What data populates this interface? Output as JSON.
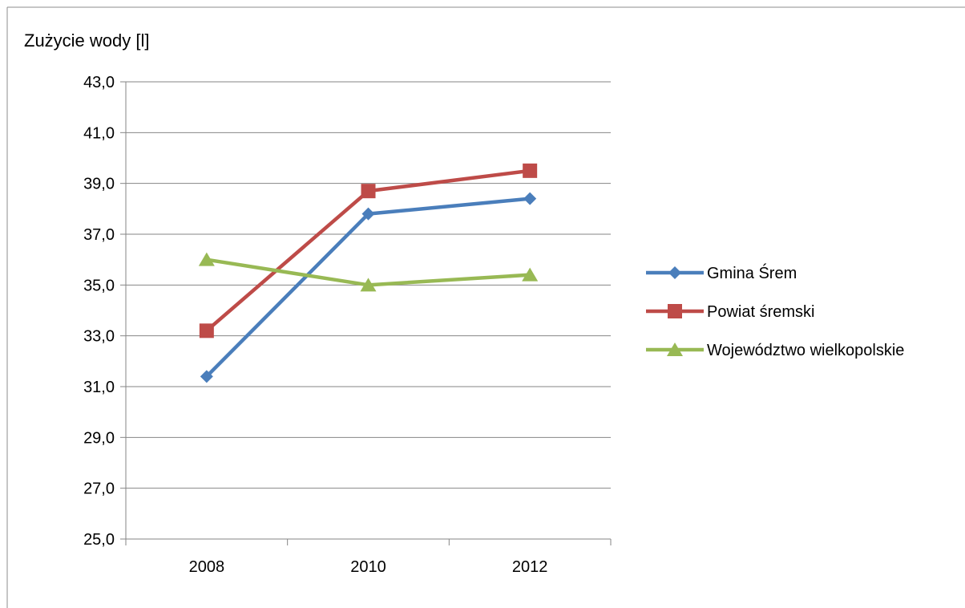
{
  "chart_data": {
    "type": "line",
    "title": "Zużycie wody [l]",
    "categories": [
      "2008",
      "2010",
      "2012"
    ],
    "ylim": [
      25,
      43
    ],
    "yticks": [
      "25,0",
      "27,0",
      "29,0",
      "31,0",
      "33,0",
      "35,0",
      "37,0",
      "39,0",
      "41,0",
      "43,0"
    ],
    "grid": true,
    "legend_position": "right",
    "series": [
      {
        "name": "Gmina Śrem",
        "values": [
          31.4,
          37.8,
          38.4
        ],
        "color": "#4a7ebb",
        "marker": "diamond"
      },
      {
        "name": "Powiat śremski",
        "values": [
          33.2,
          38.7,
          39.5
        ],
        "color": "#be4b48",
        "marker": "square"
      },
      {
        "name": "Województwo wielkopolskie",
        "values": [
          36.0,
          35.0,
          35.4
        ],
        "color": "#98b954",
        "marker": "triangle"
      }
    ]
  }
}
